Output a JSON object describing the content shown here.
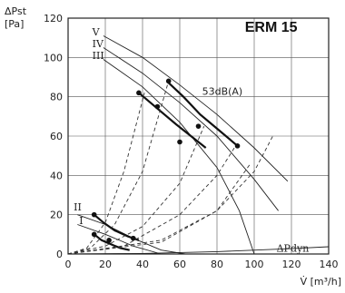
{
  "chart_data": {
    "type": "line",
    "title": "ERM 15",
    "ylabel_line1": "ΔPst",
    "ylabel_line2": "[Pa]",
    "xlabel": "V̇ [m³/h]",
    "xlim": [
      0,
      140
    ],
    "ylim": [
      0,
      120
    ],
    "x_ticks": [
      0,
      20,
      40,
      60,
      80,
      100,
      120,
      140
    ],
    "y_ticks": [
      0,
      20,
      40,
      60,
      80,
      100,
      120
    ],
    "grid": true,
    "series": [
      {
        "name": "V",
        "style": "solid",
        "x": [
          19,
          40,
          60,
          80,
          100,
          118
        ],
        "y": [
          111,
          100,
          86,
          71,
          54,
          37
        ]
      },
      {
        "name": "IV",
        "style": "solid",
        "x": [
          19,
          40,
          60,
          80,
          100,
          113
        ],
        "y": [
          105,
          92,
          77,
          60,
          38,
          22
        ]
      },
      {
        "name": "III",
        "style": "solid",
        "x": [
          19,
          40,
          60,
          80,
          92,
          100
        ],
        "y": [
          99,
          85,
          67,
          44,
          22,
          0
        ]
      },
      {
        "name": "II",
        "style": "solid",
        "x": [
          5,
          20,
          35,
          50,
          63
        ],
        "y": [
          20,
          15,
          8,
          2,
          0
        ]
      },
      {
        "name": "I",
        "style": "solid",
        "x": [
          5,
          20,
          35,
          50
        ],
        "y": [
          15,
          10,
          4,
          0
        ]
      },
      {
        "name": "ΔPdyn",
        "style": "solid",
        "x": [
          0,
          40,
          80,
          120,
          140
        ],
        "y": [
          0,
          0.3,
          1.2,
          2.7,
          3.7
        ]
      },
      {
        "name": "",
        "style": "bold",
        "x": [
          38,
          48,
          58,
          66,
          74
        ],
        "y": [
          82,
          74,
          66,
          60,
          54
        ]
      },
      {
        "name": "",
        "style": "bold",
        "x": [
          53,
          62,
          71,
          81,
          91
        ],
        "y": [
          88,
          80,
          71,
          63,
          55
        ]
      },
      {
        "name": "",
        "style": "bold",
        "x": [
          14,
          19,
          25,
          32,
          38
        ],
        "y": [
          20,
          16,
          12,
          9,
          7
        ]
      },
      {
        "name": "",
        "style": "bold",
        "x": [
          14,
          18,
          23,
          28,
          33
        ],
        "y": [
          10,
          7,
          5,
          3,
          2
        ]
      },
      {
        "name": "",
        "style": "dashed",
        "x": [
          0,
          10,
          20,
          30,
          41
        ],
        "y": [
          0,
          3,
          16,
          42,
          82
        ]
      },
      {
        "name": "",
        "style": "dashed",
        "x": [
          0,
          12,
          25,
          40,
          54
        ],
        "y": [
          0,
          3,
          15,
          42,
          88
        ]
      },
      {
        "name": "",
        "style": "dashed",
        "x": [
          0,
          20,
          40,
          60,
          73
        ],
        "y": [
          0,
          4,
          14,
          36,
          65
        ]
      },
      {
        "name": "",
        "style": "dashed",
        "x": [
          0,
          30,
          60,
          80,
          90
        ],
        "y": [
          0,
          4,
          20,
          40,
          55
        ]
      },
      {
        "name": "",
        "style": "dashed",
        "x": [
          0,
          50,
          80,
          100,
          110
        ],
        "y": [
          0,
          6,
          22,
          42,
          60
        ]
      },
      {
        "name": "",
        "style": "dashed",
        "x": [
          0,
          50,
          80,
          98
        ],
        "y": [
          0,
          7,
          22,
          46
        ]
      }
    ],
    "points": [
      {
        "x": 38,
        "y": 82
      },
      {
        "x": 48,
        "y": 75
      },
      {
        "x": 60,
        "y": 57
      },
      {
        "x": 54,
        "y": 88
      },
      {
        "x": 70,
        "y": 65
      },
      {
        "x": 91,
        "y": 55
      },
      {
        "x": 14,
        "y": 20
      },
      {
        "x": 14,
        "y": 10
      },
      {
        "x": 22,
        "y": 7
      },
      {
        "x": 35,
        "y": 8
      }
    ],
    "annotation": {
      "text": "53dB(A)",
      "x": 72,
      "y": 81
    }
  }
}
